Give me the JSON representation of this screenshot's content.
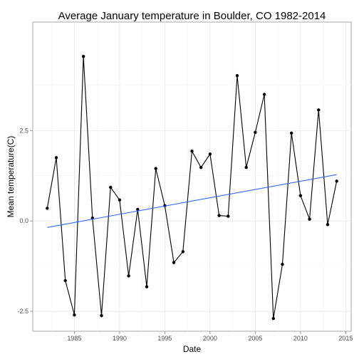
{
  "chart_data": {
    "type": "line",
    "title": "Average January temperature in Boulder, CO 1982-2014",
    "xlabel": "Date",
    "ylabel": "Mean temperature(C)",
    "xlim": [
      1980.4,
      2015.6
    ],
    "ylim": [
      -3.05,
      5.5
    ],
    "x_ticks": [
      1985,
      1990,
      1995,
      2000,
      2005,
      2010,
      2015
    ],
    "y_ticks": [
      -2.5,
      0.0,
      2.5
    ],
    "y_tick_labels": [
      "-2.5",
      "0.0",
      "2.5"
    ],
    "grid": true,
    "legend": "none",
    "series": [
      {
        "color": "#000000",
        "markers": true,
        "x": [
          1982,
          1983,
          1984,
          1985,
          1986,
          1987,
          1988,
          1989,
          1990,
          1991,
          1992,
          1993,
          1994,
          1995,
          1996,
          1997,
          1998,
          1999,
          2000,
          2001,
          2002,
          2003,
          2004,
          2005,
          2006,
          2007,
          2008,
          2009,
          2010,
          2011,
          2012,
          2013,
          2014
        ],
        "y": [
          0.35,
          1.75,
          -1.65,
          -2.6,
          4.55,
          0.08,
          -2.62,
          0.93,
          0.58,
          -1.52,
          0.32,
          -1.82,
          1.45,
          0.42,
          -1.15,
          -0.85,
          1.93,
          1.48,
          1.85,
          0.15,
          0.13,
          4.02,
          1.48,
          2.45,
          3.5,
          -2.7,
          -1.2,
          2.43,
          0.7,
          0.05,
          3.07,
          -0.1,
          1.1
        ]
      }
    ],
    "trend_line": {
      "color": "#3366ff",
      "x": [
        1982,
        2014
      ],
      "y": [
        -0.18,
        1.28
      ]
    }
  }
}
